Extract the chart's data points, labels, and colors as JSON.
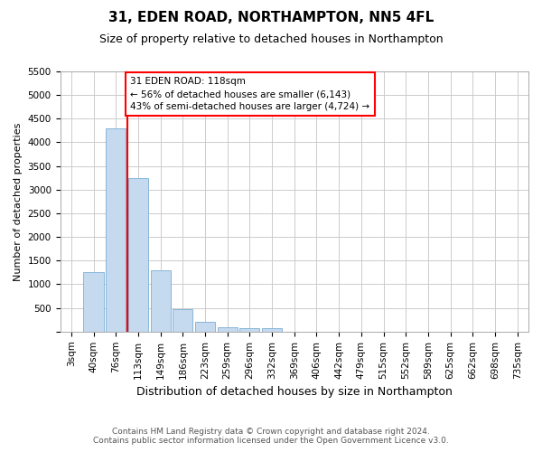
{
  "title": "31, EDEN ROAD, NORTHAMPTON, NN5 4FL",
  "subtitle": "Size of property relative to detached houses in Northampton",
  "xlabel": "Distribution of detached houses by size in Northampton",
  "ylabel": "Number of detached properties",
  "bar_color": "#c5d9ef",
  "bar_edge_color": "#7aafd4",
  "annotation_text": "31 EDEN ROAD: 118sqm\n← 56% of detached houses are smaller (6,143)\n43% of semi-detached houses are larger (4,724) →",
  "red_line_bin": 3,
  "categories": [
    "3sqm",
    "40sqm",
    "76sqm",
    "113sqm",
    "149sqm",
    "186sqm",
    "223sqm",
    "259sqm",
    "296sqm",
    "332sqm",
    "369sqm",
    "406sqm",
    "442sqm",
    "479sqm",
    "515sqm",
    "552sqm",
    "589sqm",
    "625sqm",
    "662sqm",
    "698sqm",
    "735sqm"
  ],
  "bar_heights": [
    0,
    1250,
    4300,
    3250,
    1300,
    480,
    200,
    100,
    70,
    70,
    0,
    0,
    0,
    0,
    0,
    0,
    0,
    0,
    0,
    0,
    0
  ],
  "ylim": [
    0,
    5500
  ],
  "yticks": [
    0,
    500,
    1000,
    1500,
    2000,
    2500,
    3000,
    3500,
    4000,
    4500,
    5000,
    5500
  ],
  "footer_line1": "Contains HM Land Registry data © Crown copyright and database right 2024.",
  "footer_line2": "Contains public sector information licensed under the Open Government Licence v3.0.",
  "background_color": "#ffffff",
  "grid_color": "#cccccc",
  "title_fontsize": 11,
  "subtitle_fontsize": 9,
  "ylabel_fontsize": 8,
  "xlabel_fontsize": 9,
  "tick_fontsize": 7.5,
  "annotation_fontsize": 7.5,
  "footer_fontsize": 6.5
}
